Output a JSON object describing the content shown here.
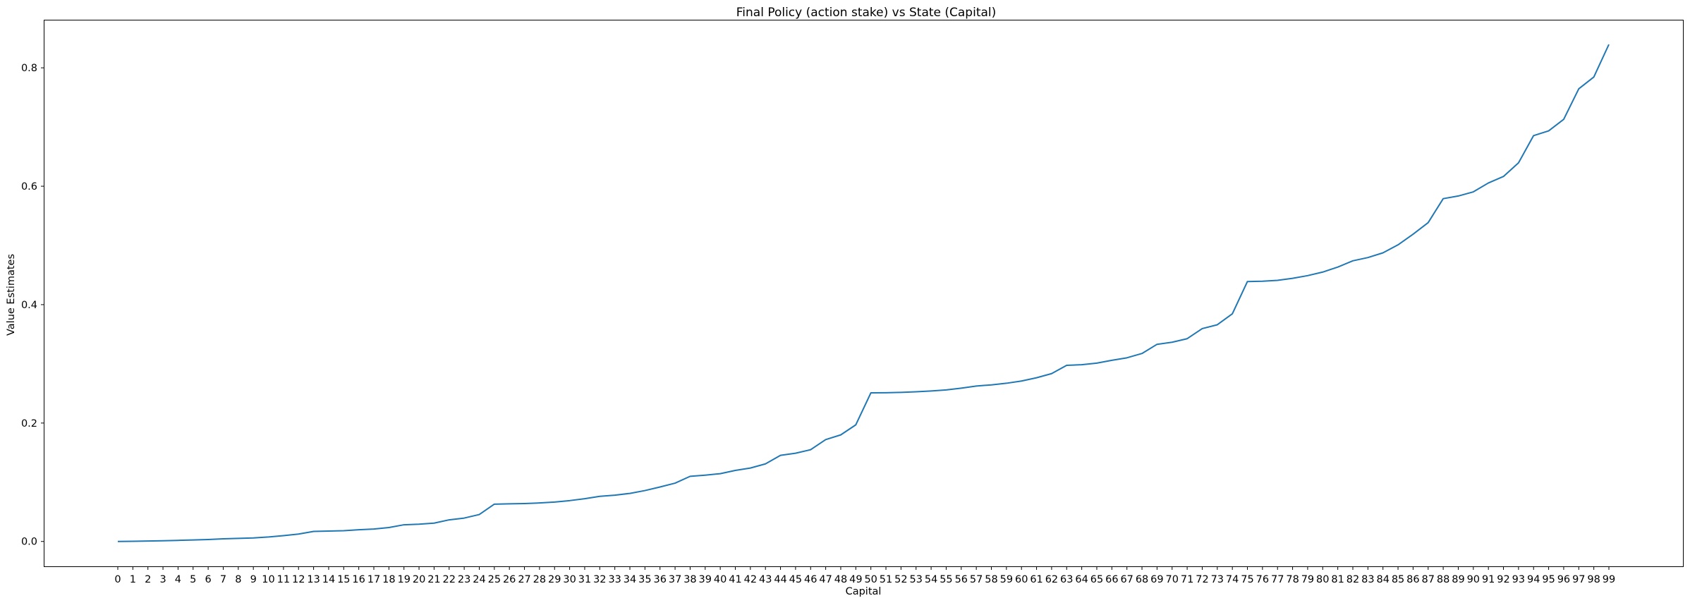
{
  "chart_data": {
    "type": "line",
    "title": "Final Policy (action stake) vs State (Capital)",
    "xlabel": "Capital",
    "ylabel": "Value Estimates",
    "ylim": [
      -0.042,
      0.88
    ],
    "yticks": [
      0.0,
      0.2,
      0.4,
      0.6,
      0.8
    ],
    "ytick_labels": [
      "0.0",
      "0.2",
      "0.4",
      "0.6",
      "0.8"
    ],
    "grid": false,
    "x": [
      0,
      1,
      2,
      3,
      4,
      5,
      6,
      7,
      8,
      9,
      10,
      11,
      12,
      13,
      14,
      15,
      16,
      17,
      18,
      19,
      20,
      21,
      22,
      23,
      24,
      25,
      26,
      27,
      28,
      29,
      30,
      31,
      32,
      33,
      34,
      35,
      36,
      37,
      38,
      39,
      40,
      41,
      42,
      43,
      44,
      45,
      46,
      47,
      48,
      49,
      50,
      51,
      52,
      53,
      54,
      55,
      56,
      57,
      58,
      59,
      60,
      61,
      62,
      63,
      64,
      65,
      66,
      67,
      68,
      69,
      70,
      71,
      72,
      73,
      74,
      75,
      76,
      77,
      78,
      79,
      80,
      81,
      82,
      83,
      84,
      85,
      86,
      87,
      88,
      89,
      90,
      91,
      92,
      93,
      94,
      95,
      96,
      97,
      98,
      99
    ],
    "series": [
      {
        "color": "#1f77b4",
        "values": [
          0.0,
          0.0003,
          0.0007,
          0.0012,
          0.0018,
          0.0025,
          0.0033,
          0.0045,
          0.0052,
          0.006,
          0.0076,
          0.0098,
          0.0125,
          0.017,
          0.0175,
          0.0181,
          0.0198,
          0.021,
          0.0235,
          0.0282,
          0.0292,
          0.031,
          0.0365,
          0.0395,
          0.0455,
          0.063,
          0.0635,
          0.064,
          0.065,
          0.0665,
          0.069,
          0.0722,
          0.0762,
          0.0782,
          0.0812,
          0.086,
          0.092,
          0.0985,
          0.11,
          0.112,
          0.1145,
          0.12,
          0.124,
          0.131,
          0.1455,
          0.149,
          0.155,
          0.172,
          0.18,
          0.197,
          0.251,
          0.2512,
          0.2518,
          0.2528,
          0.2542,
          0.256,
          0.259,
          0.2625,
          0.2645,
          0.2672,
          0.271,
          0.2765,
          0.2835,
          0.2975,
          0.2985,
          0.3012,
          0.306,
          0.3102,
          0.3175,
          0.333,
          0.3365,
          0.3425,
          0.3595,
          0.366,
          0.3845,
          0.439,
          0.4395,
          0.441,
          0.4445,
          0.449,
          0.455,
          0.4635,
          0.474,
          0.4795,
          0.4875,
          0.501,
          0.519,
          0.5385,
          0.579,
          0.5835,
          0.5905,
          0.6055,
          0.6165,
          0.6395,
          0.6855,
          0.6935,
          0.713,
          0.7645,
          0.7845,
          0.8395
        ]
      }
    ]
  }
}
